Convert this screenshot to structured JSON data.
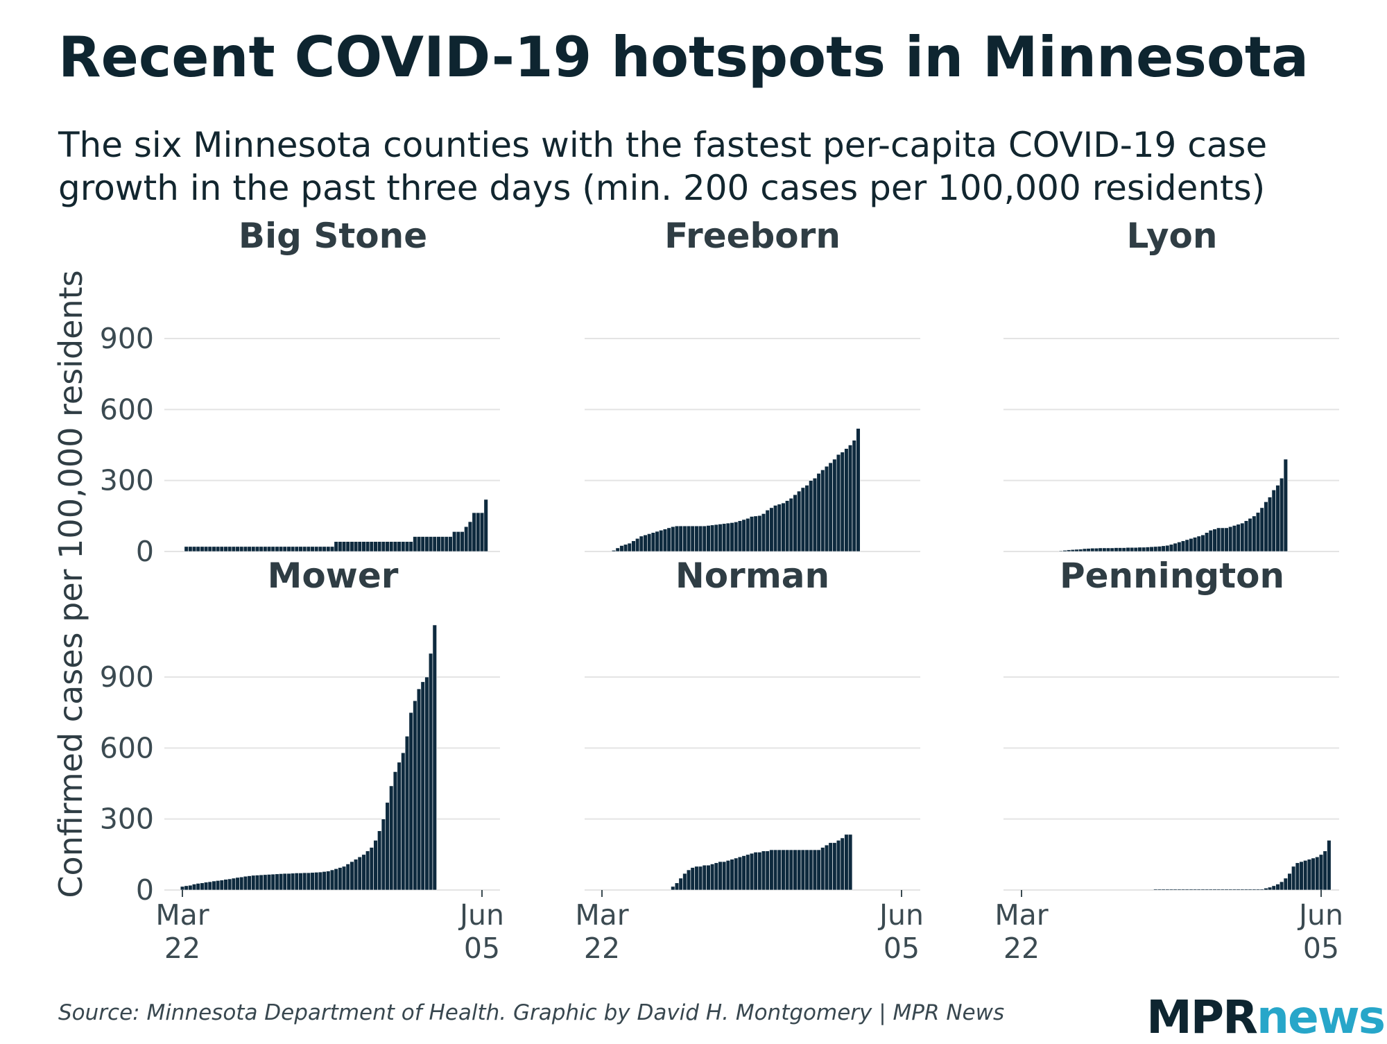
{
  "title": "Recent COVID-19 hotspots in Minnesota",
  "subtitle": "The six Minnesota counties with the fastest per-capita COVID-19 case growth in the past three days (min. 200 cases per 100,000 residents)",
  "source": "Source: Minnesota Department of Health. Graphic by David H. Montgomery | MPR News",
  "logo": {
    "mpr": "MPR",
    "news": "news"
  },
  "colors": {
    "bar": "#0e2a3e",
    "grid": "#e4e4e4",
    "text": "#12262f",
    "accent": "#27a6c9"
  },
  "chart_data": {
    "type": "bar",
    "layout": "small-multiples 3x2",
    "ylabel": "Confirmed cases per 100,000 residents",
    "yticks": [
      0,
      300,
      600,
      900
    ],
    "ylim": [
      0,
      1140
    ],
    "xlim_days": [
      0,
      76
    ],
    "xticks": [
      {
        "day": 0,
        "label": [
          "Mar",
          "22"
        ]
      },
      {
        "day": 76,
        "label": [
          "Jun",
          "05"
        ]
      }
    ],
    "series": [
      {
        "name": "Big Stone",
        "start": 1,
        "days": 76,
        "values": [
          21,
          21,
          21,
          21,
          21,
          21,
          21,
          21,
          21,
          21,
          21,
          21,
          21,
          21,
          21,
          21,
          21,
          21,
          21,
          21,
          21,
          21,
          21,
          21,
          21,
          21,
          21,
          21,
          21,
          21,
          21,
          21,
          21,
          21,
          21,
          21,
          21,
          21,
          42,
          42,
          42,
          42,
          42,
          42,
          42,
          42,
          42,
          42,
          42,
          42,
          42,
          42,
          42,
          42,
          42,
          42,
          42,
          42,
          63,
          63,
          63,
          63,
          63,
          63,
          63,
          63,
          63,
          63,
          84,
          84,
          84,
          105,
          126,
          164,
          164,
          164,
          220
        ]
      },
      {
        "name": "Freeborn",
        "start": 3,
        "days": 76,
        "values": [
          5,
          15,
          25,
          30,
          35,
          45,
          55,
          65,
          70,
          75,
          80,
          85,
          90,
          95,
          100,
          105,
          108,
          108,
          108,
          108,
          108,
          108,
          108,
          108,
          110,
          112,
          114,
          116,
          118,
          120,
          122,
          125,
          130,
          135,
          140,
          148,
          150,
          152,
          160,
          175,
          185,
          195,
          200,
          205,
          215,
          225,
          240,
          255,
          270,
          280,
          300,
          310,
          330,
          345,
          360,
          375,
          390,
          410,
          420,
          435,
          450,
          470,
          520
        ]
      },
      {
        "name": "Lyon",
        "start": 10,
        "days": 76,
        "values": [
          3,
          5,
          7,
          8,
          9,
          10,
          12,
          13,
          14,
          14,
          15,
          15,
          15,
          15,
          16,
          16,
          16,
          17,
          17,
          17,
          18,
          18,
          19,
          20,
          21,
          22,
          24,
          26,
          30,
          35,
          40,
          45,
          50,
          55,
          60,
          65,
          70,
          80,
          90,
          95,
          100,
          100,
          100,
          105,
          110,
          115,
          120,
          130,
          140,
          150,
          165,
          185,
          210,
          230,
          260,
          280,
          310,
          390
        ]
      },
      {
        "name": "Mower",
        "start": 0,
        "days": 76,
        "values": [
          15,
          18,
          20,
          25,
          28,
          30,
          33,
          35,
          38,
          40,
          42,
          45,
          47,
          50,
          53,
          55,
          58,
          60,
          62,
          63,
          64,
          65,
          66,
          67,
          68,
          69,
          70,
          70,
          71,
          72,
          72,
          73,
          73,
          74,
          75,
          76,
          78,
          80,
          85,
          90,
          95,
          100,
          110,
          120,
          130,
          140,
          150,
          165,
          180,
          210,
          250,
          300,
          370,
          440,
          500,
          540,
          580,
          650,
          750,
          800,
          850,
          880,
          900,
          1000,
          1120
        ]
      },
      {
        "name": "Norman",
        "start": 18,
        "days": 76,
        "values": [
          15,
          30,
          50,
          70,
          85,
          95,
          100,
          100,
          105,
          105,
          110,
          115,
          120,
          120,
          125,
          130,
          135,
          140,
          145,
          150,
          155,
          160,
          160,
          165,
          165,
          170,
          170,
          170,
          170,
          170,
          170,
          170,
          170,
          170,
          170,
          170,
          170,
          170,
          180,
          190,
          200,
          200,
          210,
          220,
          235,
          235
        ]
      },
      {
        "name": "Pennington",
        "start": 34,
        "days": 76,
        "values": [
          4,
          4,
          4,
          4,
          4,
          4,
          4,
          4,
          4,
          4,
          4,
          4,
          4,
          4,
          4,
          4,
          4,
          4,
          4,
          4,
          4,
          4,
          4,
          4,
          4,
          4,
          4,
          4,
          8,
          12,
          18,
          25,
          35,
          50,
          70,
          100,
          115,
          120,
          125,
          130,
          135,
          140,
          150,
          165,
          210
        ]
      }
    ]
  }
}
